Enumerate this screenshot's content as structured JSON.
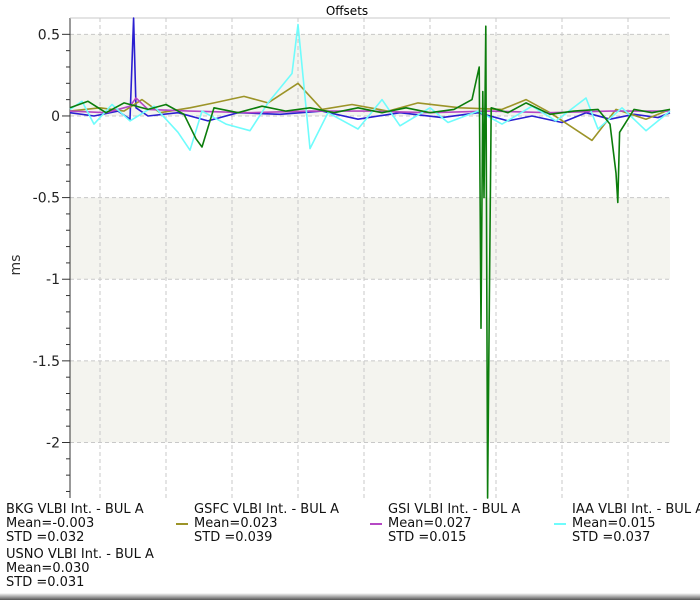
{
  "chart_data": {
    "type": "line",
    "title": "Offsets",
    "xlabel": "",
    "ylabel": "ms",
    "ylim": [
      -2.34,
      0.6
    ],
    "yticks": [
      0.5,
      0,
      -0.5,
      -1,
      -1.5,
      -2
    ],
    "ytick_labels": [
      "0.5",
      "0",
      "-0.5",
      "-1",
      "-1.5",
      "-2"
    ],
    "xlim": [
      0,
      100
    ],
    "grid": true,
    "legend_position": "bottom",
    "series": [
      {
        "name": "BKG VLBI Int. - BUL A",
        "color": "#2a1fd1",
        "stats": [
          "Mean=-0.003",
          "STD =0.032"
        ],
        "points": [
          [
            0,
            0.02
          ],
          [
            4,
            0.0
          ],
          [
            8,
            0.03
          ],
          [
            10,
            -0.02
          ],
          [
            10.6,
            0.6
          ],
          [
            11,
            0.05
          ],
          [
            13,
            0.0
          ],
          [
            18,
            0.02
          ],
          [
            23,
            -0.03
          ],
          [
            28,
            0.02
          ],
          [
            35,
            0.01
          ],
          [
            42,
            0.03
          ],
          [
            48,
            -0.02
          ],
          [
            55,
            0.02
          ],
          [
            62,
            -0.01
          ],
          [
            68,
            0.02
          ],
          [
            73,
            -0.03
          ],
          [
            77,
            0.0
          ],
          [
            82,
            -0.04
          ],
          [
            86,
            0.02
          ],
          [
            90,
            -0.02
          ],
          [
            94,
            0.01
          ],
          [
            98,
            -0.01
          ],
          [
            100,
            0.02
          ]
        ]
      },
      {
        "name": "GSFC VLBI Int. - BUL A",
        "color": "#9c9428",
        "stats": [
          "Mean=0.023",
          "STD =0.039"
        ],
        "points": [
          [
            0,
            0.03
          ],
          [
            5,
            0.05
          ],
          [
            9,
            0.03
          ],
          [
            12,
            0.1
          ],
          [
            15,
            0.02
          ],
          [
            20,
            0.05
          ],
          [
            24,
            0.08
          ],
          [
            29,
            0.12
          ],
          [
            33,
            0.08
          ],
          [
            38,
            0.2
          ],
          [
            42,
            0.04
          ],
          [
            47,
            0.07
          ],
          [
            53,
            0.03
          ],
          [
            58,
            0.08
          ],
          [
            65,
            0.05
          ],
          [
            72,
            0.04
          ],
          [
            76,
            0.1
          ],
          [
            80,
            0.02
          ],
          [
            87,
            -0.15
          ],
          [
            91,
            0.04
          ],
          [
            96,
            -0.02
          ],
          [
            100,
            0.04
          ]
        ]
      },
      {
        "name": "GSI VLBI Int. - BUL A",
        "color": "#b548c4",
        "stats": [
          "Mean=0.027",
          "STD =0.015"
        ],
        "points": [
          [
            0,
            0.03
          ],
          [
            6,
            0.02
          ],
          [
            10,
            0.06
          ],
          [
            11,
            0.11
          ],
          [
            13,
            0.04
          ],
          [
            20,
            0.03
          ],
          [
            30,
            0.02
          ],
          [
            40,
            0.03
          ],
          [
            50,
            0.03
          ],
          [
            60,
            0.02
          ],
          [
            70,
            0.03
          ],
          [
            80,
            0.02
          ],
          [
            90,
            0.03
          ],
          [
            100,
            0.03
          ]
        ]
      },
      {
        "name": "IAA VLBI Int. - BUL A",
        "color": "#6ffcfc",
        "stats": [
          "Mean=0.015",
          "STD =0.037"
        ],
        "points": [
          [
            0,
            0.04
          ],
          [
            2,
            0.09
          ],
          [
            4,
            -0.05
          ],
          [
            7,
            0.07
          ],
          [
            10,
            -0.03
          ],
          [
            14,
            0.06
          ],
          [
            18,
            -0.1
          ],
          [
            20,
            -0.21
          ],
          [
            22,
            0.03
          ],
          [
            26,
            -0.05
          ],
          [
            30,
            -0.09
          ],
          [
            33,
            0.08
          ],
          [
            37,
            0.26
          ],
          [
            38,
            0.56
          ],
          [
            40,
            -0.2
          ],
          [
            43,
            0.02
          ],
          [
            48,
            -0.08
          ],
          [
            52,
            0.1
          ],
          [
            55,
            -0.06
          ],
          [
            60,
            0.05
          ],
          [
            63,
            -0.04
          ],
          [
            68,
            0.03
          ],
          [
            72,
            -0.05
          ],
          [
            77,
            0.06
          ],
          [
            81,
            -0.03
          ],
          [
            86,
            0.11
          ],
          [
            88,
            -0.08
          ],
          [
            92,
            0.05
          ],
          [
            96,
            -0.09
          ],
          [
            100,
            0.03
          ]
        ]
      },
      {
        "name": "USNO VLBI Int. - BUL A",
        "color": "#0c7d0c",
        "stats": [
          "Mean=0.030",
          "STD =0.031"
        ],
        "points": [
          [
            0,
            0.05
          ],
          [
            3,
            0.09
          ],
          [
            6,
            0.02
          ],
          [
            9,
            0.08
          ],
          [
            13,
            0.04
          ],
          [
            16,
            0.07
          ],
          [
            19,
            0.01
          ],
          [
            21,
            -0.14
          ],
          [
            22,
            -0.19
          ],
          [
            24,
            0.05
          ],
          [
            28,
            0.02
          ],
          [
            32,
            0.06
          ],
          [
            36,
            0.03
          ],
          [
            40,
            0.05
          ],
          [
            44,
            0.02
          ],
          [
            48,
            0.05
          ],
          [
            52,
            0.02
          ],
          [
            56,
            0.05
          ],
          [
            60,
            0.02
          ],
          [
            64,
            0.04
          ],
          [
            67,
            0.1
          ],
          [
            68.2,
            0.3
          ],
          [
            68.5,
            -1.3
          ],
          [
            68.8,
            0.15
          ],
          [
            69,
            -0.5
          ],
          [
            69.3,
            0.55
          ],
          [
            69.6,
            -2.34
          ],
          [
            69.9,
            -1.1
          ],
          [
            70.2,
            0.05
          ],
          [
            73,
            0.02
          ],
          [
            76,
            0.08
          ],
          [
            80,
            0.01
          ],
          [
            84,
            0.03
          ],
          [
            88,
            0.04
          ],
          [
            90,
            -0.05
          ],
          [
            91,
            -0.35
          ],
          [
            91.3,
            -0.53
          ],
          [
            91.6,
            -0.1
          ],
          [
            94,
            0.04
          ],
          [
            97,
            0.02
          ],
          [
            100,
            0.04
          ]
        ]
      }
    ]
  }
}
